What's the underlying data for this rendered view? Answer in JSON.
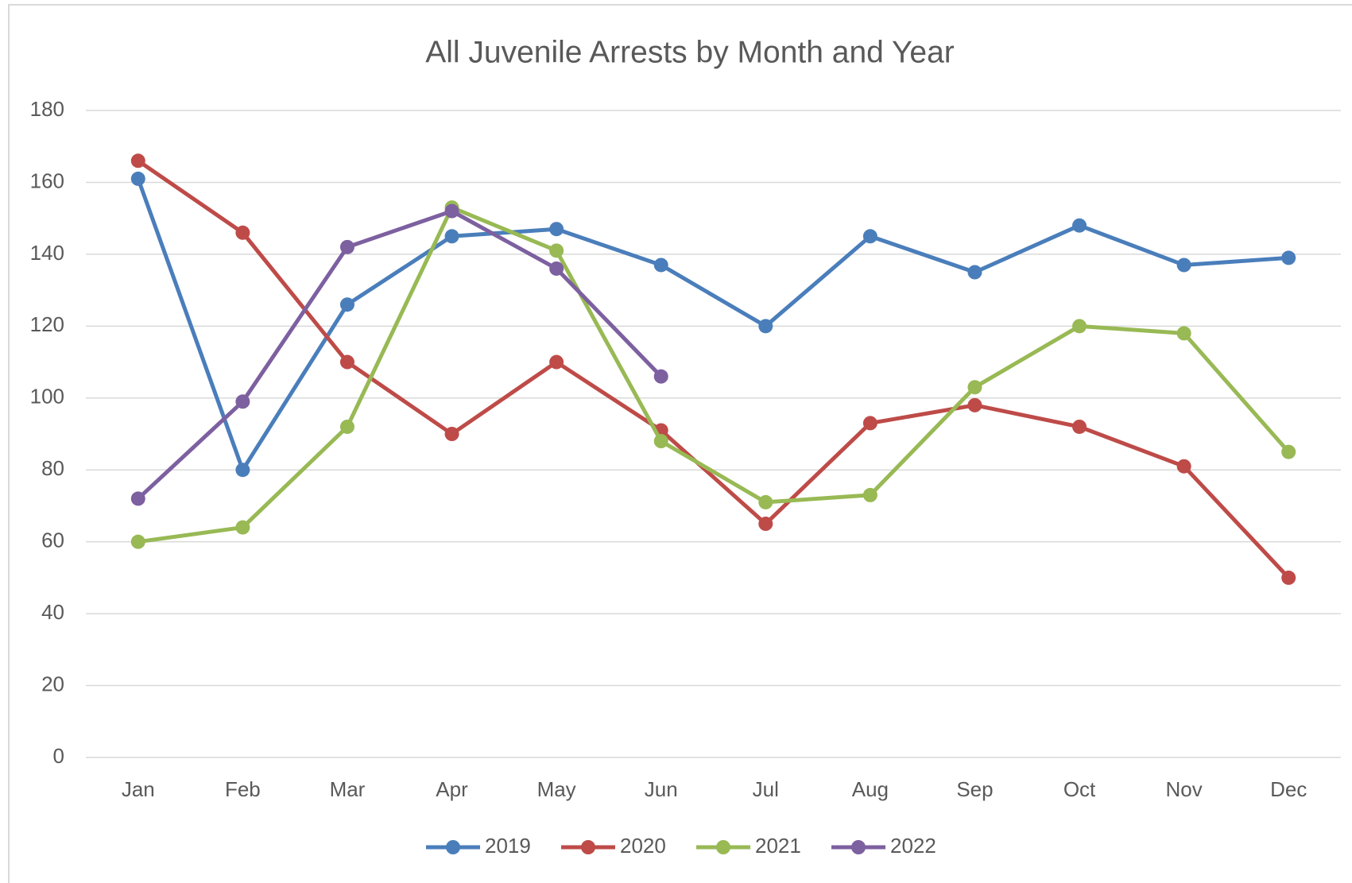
{
  "chart_data": {
    "type": "line",
    "title": "All Juvenile Arrests by Month and Year",
    "categories": [
      "Jan",
      "Feb",
      "Mar",
      "Apr",
      "May",
      "Jun",
      "Jul",
      "Aug",
      "Sep",
      "Oct",
      "Nov",
      "Dec"
    ],
    "series": [
      {
        "name": "2019",
        "color": "#4a7ebb",
        "values": [
          161,
          80,
          126,
          145,
          147,
          137,
          120,
          145,
          135,
          148,
          137,
          139
        ]
      },
      {
        "name": "2020",
        "color": "#be4b48",
        "values": [
          166,
          146,
          110,
          90,
          110,
          91,
          65,
          93,
          98,
          92,
          81,
          50
        ]
      },
      {
        "name": "2021",
        "color": "#98b954",
        "values": [
          60,
          64,
          92,
          153,
          141,
          88,
          71,
          73,
          103,
          120,
          118,
          85
        ]
      },
      {
        "name": "2022",
        "color": "#7d60a0",
        "values": [
          72,
          99,
          142,
          152,
          136,
          106,
          null,
          null,
          null,
          null,
          null,
          null
        ]
      }
    ],
    "ylim": [
      0,
      180
    ],
    "yticks": [
      0,
      20,
      40,
      60,
      80,
      100,
      120,
      140,
      160,
      180
    ],
    "grid": true,
    "legend": "bottom"
  }
}
